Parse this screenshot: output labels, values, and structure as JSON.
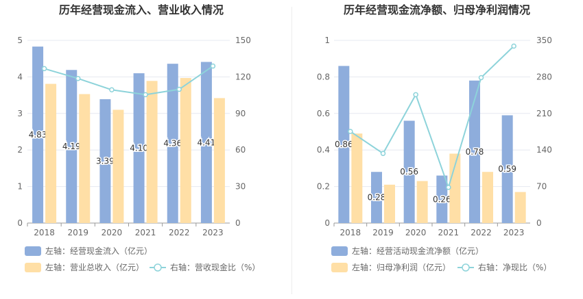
{
  "colors": {
    "bar_primary": "#8eaddc",
    "bar_secondary": "#ffdfa6",
    "line": "#8dd3da",
    "grid": "#e6e8f0",
    "axis_text": "#666666",
    "title": "#333333"
  },
  "chart_data": [
    {
      "type": "bar",
      "title": "历年经营现金流入、营业收入情况",
      "categories": [
        "2018",
        "2019",
        "2020",
        "2021",
        "2022",
        "2023"
      ],
      "left_axis": {
        "ylim": [
          0,
          5
        ],
        "ticks": [
          "0",
          "1",
          "2",
          "3",
          "4",
          "5"
        ]
      },
      "right_axis": {
        "ylim": [
          0,
          150
        ],
        "ticks": [
          "0",
          "30",
          "60",
          "90",
          "120",
          "150"
        ]
      },
      "series": [
        {
          "name": "左轴：经营现金流入（亿元）",
          "type": "bar",
          "axis": "left",
          "color": "#8eaddc",
          "values": [
            4.83,
            4.19,
            3.39,
            4.1,
            4.36,
            4.41
          ],
          "labels": [
            "4.83",
            "4.19",
            "3.39",
            "4.10",
            "4.36",
            "4.41"
          ]
        },
        {
          "name": "左轴：营业总收入（亿元）",
          "type": "bar",
          "axis": "left",
          "color": "#ffdfa6",
          "values": [
            3.81,
            3.53,
            3.1,
            3.89,
            3.97,
            3.42
          ]
        },
        {
          "name": "右轴：营收现金比（%）",
          "type": "line",
          "axis": "right",
          "color": "#8dd3da",
          "values": [
            126.8,
            118.7,
            109.4,
            105.4,
            109.8,
            128.9
          ]
        }
      ],
      "legend": "bottom-left",
      "grid": true
    },
    {
      "type": "bar",
      "title": "历年经营现金流净额、归母净利润情况",
      "categories": [
        "2018",
        "2019",
        "2020",
        "2021",
        "2022",
        "2023"
      ],
      "left_axis": {
        "ylim": [
          0,
          1
        ],
        "ticks": [
          "0",
          "0.2",
          "0.4",
          "0.6",
          "0.8",
          "1"
        ]
      },
      "right_axis": {
        "ylim": [
          0,
          350
        ],
        "ticks": [
          "0",
          "70",
          "140",
          "210",
          "280",
          "350"
        ]
      },
      "series": [
        {
          "name": "左轴：经营活动现金流净额（亿元）",
          "type": "bar",
          "axis": "left",
          "color": "#8eaddc",
          "values": [
            0.86,
            0.28,
            0.56,
            0.26,
            0.78,
            0.59
          ],
          "labels": [
            "0.86",
            "0.28",
            "0.56",
            "0.26",
            "0.78",
            "0.59"
          ]
        },
        {
          "name": "左轴：归母净利润（亿元）",
          "type": "bar",
          "axis": "left",
          "color": "#ffdfa6",
          "values": [
            0.49,
            0.21,
            0.23,
            0.38,
            0.28,
            0.17
          ]
        },
        {
          "name": "右轴：净现比（%）",
          "type": "line",
          "axis": "right",
          "color": "#8dd3da",
          "values": [
            175.5,
            133.3,
            246.0,
            68.4,
            278.6,
            339.0
          ]
        }
      ],
      "legend": "bottom-left",
      "grid": true
    }
  ]
}
